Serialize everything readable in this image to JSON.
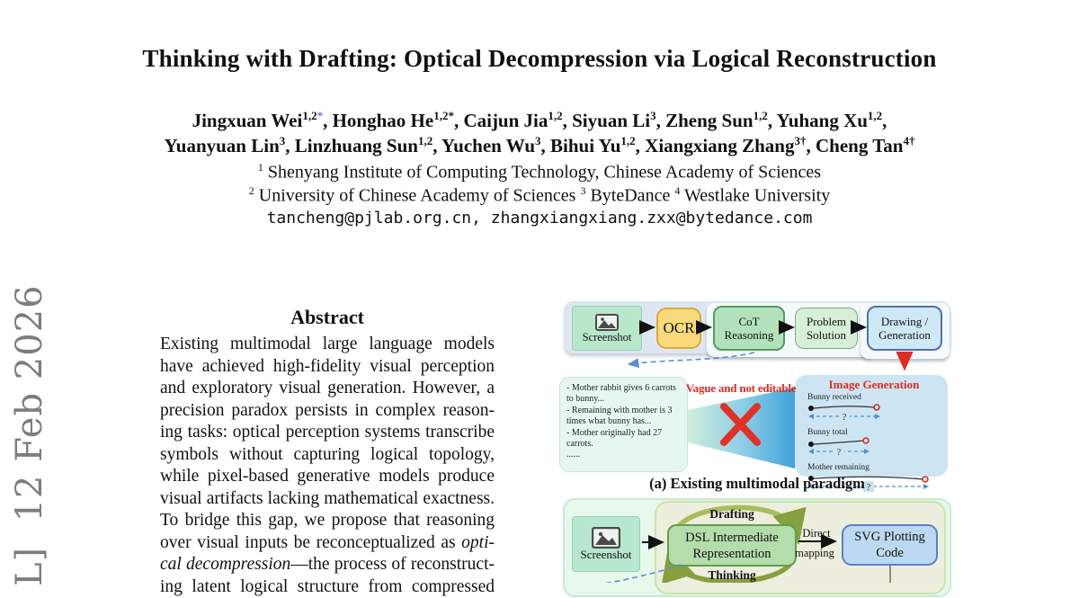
{
  "sidebar": {
    "arxiv_text": "L]  12 Feb 2026"
  },
  "header": {
    "title": "Thinking with Drafting: Optical Decompression via Logical Reconstruction",
    "author_line1": [
      {
        "t": "Jingxuan Wei"
      },
      {
        "sup": "1,2"
      },
      {
        "sup": "*",
        "c": "#6f6fd8"
      },
      {
        "t": ", Honghao He"
      },
      {
        "sup": "1,2*"
      },
      {
        "t": ", Caijun Jia"
      },
      {
        "sup": "1,2"
      },
      {
        "t": ", Siyuan Li"
      },
      {
        "sup": "3"
      },
      {
        "t": ", Zheng Sun"
      },
      {
        "sup": "1,2"
      },
      {
        "t": ", Yuhang Xu"
      },
      {
        "sup": "1,2"
      },
      {
        "t": ","
      }
    ],
    "author_line2": [
      {
        "t": "Yuanyuan Lin"
      },
      {
        "sup": "3"
      },
      {
        "t": ", Linzhuang Sun"
      },
      {
        "sup": "1,2"
      },
      {
        "t": ", Yuchen Wu"
      },
      {
        "sup": "3"
      },
      {
        "t": ", Bihui Yu"
      },
      {
        "sup": "1,2"
      },
      {
        "t": ", Xiangxiang Zhang"
      },
      {
        "sup": "3†"
      },
      {
        "t": ", Cheng Tan"
      },
      {
        "sup": "4†"
      }
    ],
    "affil_line1": [
      {
        "sup": "1"
      },
      {
        "t": " Shenyang Institute of Computing Technology, Chinese Academy of Sciences"
      }
    ],
    "affil_line2": [
      {
        "sup": "2"
      },
      {
        "t": " University of Chinese Academy of Sciences "
      },
      {
        "sup": "3"
      },
      {
        "t": " ByteDance "
      },
      {
        "sup": "4"
      },
      {
        "t": " Westlake University"
      }
    ],
    "emails": "tancheng@pjlab.org.cn, zhangxiangxiang.zxx@bytedance.com"
  },
  "abstract": {
    "heading": "Abstract",
    "lines": [
      [
        {
          "t": "Existing multimodal large language models"
        }
      ],
      [
        {
          "t": "have achieved high-fidelity visual perception"
        }
      ],
      [
        {
          "t": "and exploratory visual generation. However, a"
        }
      ],
      [
        {
          "t": "precision paradox persists in complex reason-"
        }
      ],
      [
        {
          "t": "ing tasks: optical perception systems transcribe"
        }
      ],
      [
        {
          "t": "symbols without capturing logical topology,"
        }
      ],
      [
        {
          "t": "while pixel-based generative models produce"
        }
      ],
      [
        {
          "t": "visual artifacts lacking mathematical exactness."
        }
      ],
      [
        {
          "t": "To bridge this gap, we propose that reasoning"
        }
      ],
      [
        {
          "t": "over visual inputs be reconceptualized as "
        },
        {
          "t": "opti-",
          "i": true
        }
      ],
      [
        {
          "t": "cal decompression",
          "i": true
        },
        {
          "t": "—the process of reconstruct-"
        }
      ],
      [
        {
          "t": "ing latent logical structure from compressed"
        }
      ]
    ]
  },
  "figure": {
    "panel_a": {
      "pipeline": {
        "screenshot": "Screenshot",
        "ocr": "OCR",
        "cot_line1": "CoT",
        "cot_line2": "Reasoning",
        "problem_line1": "Problem",
        "problem_line2": "Solution",
        "drawing_line1": "Drawing /",
        "drawing_line2": "Generation"
      },
      "note_lines": [
        "- Mother rabbit gives 6 carrots to bunny...",
        "- Remaining with mother is 3 times what bunny has...",
        "- Mother originally had 27 carrots.",
        "......"
      ],
      "warning": "Vague and not editable",
      "gen_title": "Image Generation",
      "plots": [
        {
          "label": "Bunny received",
          "q": "?"
        },
        {
          "label": "Bunny total",
          "q": "?"
        },
        {
          "label": "Mother remaining",
          "q": "?"
        }
      ],
      "caption": "(a) Existing multimodal paradigm"
    },
    "panel_b": {
      "screenshot": "Screenshot",
      "drafting": "Drafting",
      "thinking": "Thinking",
      "dsl_line1": "DSL Intermediate",
      "dsl_line2": "Representation",
      "direct": "Direct",
      "mapping": "mapping",
      "svg_line1": "SVG Plotting",
      "svg_line2": "Code"
    },
    "colors": {
      "warning_red": "#df2b22",
      "dashed_blue": "#5b8dd6",
      "beam_blue": "#41a3da",
      "box_yellow": "#fbda7b",
      "box_green": "#b2e2bb",
      "box_blue": "#cfe8f6",
      "olive_arrow": "#93ad45"
    }
  }
}
